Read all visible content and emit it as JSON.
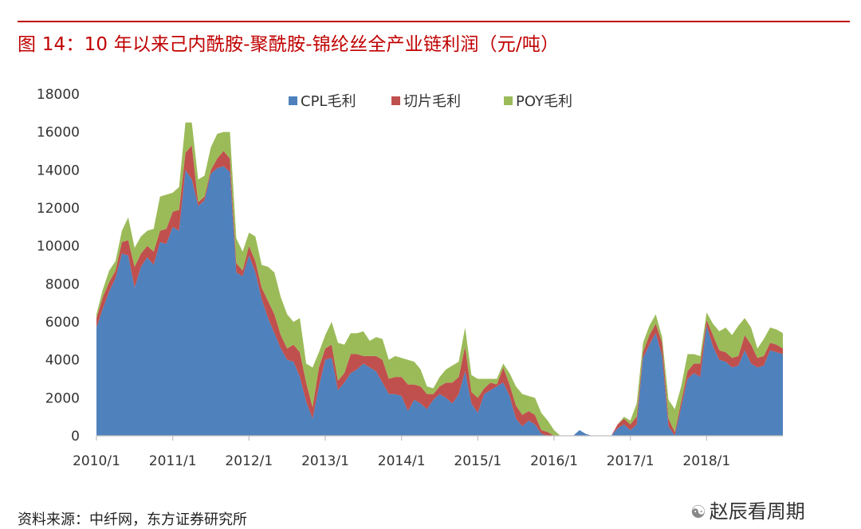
{
  "header": {
    "title": "图 14：10 年以来己内酰胺-聚酰胺-锦纶丝全产业链利润（元/吨）"
  },
  "footer": {
    "source": "资料来源：中纤网，东方证券研究所",
    "watermark": "赵辰看周期",
    "watermark_icon": "wechat-icon"
  },
  "chart_data": {
    "type": "area",
    "stacked": true,
    "title": "图 14：10 年以来己内酰胺-聚酰胺-锦纶丝全产业链利润（元/吨）",
    "ylim": [
      0,
      18000
    ],
    "yticks": [
      0,
      2000,
      4000,
      6000,
      8000,
      10000,
      12000,
      14000,
      16000,
      18000
    ],
    "ytick_labels": [
      "0",
      "2000",
      "4000",
      "6000",
      "8000",
      "10000",
      "12000",
      "14000",
      "16000",
      "18000"
    ],
    "xticks": [
      "2010/1",
      "2011/1",
      "2012/1",
      "2013/1",
      "2014/1",
      "2015/1",
      "2016/1",
      "2017/1",
      "2018/1"
    ],
    "x_start": "2010/1",
    "x_end": "2018/9",
    "grid": false,
    "legend": {
      "placement": "top-center"
    },
    "colors": {
      "CPL毛利": "#4f81bd",
      "切片毛利": "#c0504d",
      "POY毛利": "#9bbb59"
    },
    "series": [
      {
        "name": "CPL毛利",
        "values": [
          5700,
          6700,
          7600,
          8300,
          9600,
          9500,
          7800,
          8900,
          9400,
          9000,
          10200,
          10100,
          11000,
          10800,
          14000,
          13500,
          12100,
          12400,
          13800,
          14100,
          14200,
          13900,
          8600,
          8400,
          9500,
          8600,
          7200,
          6200,
          5400,
          4600,
          4000,
          3900,
          3100,
          1800,
          900,
          2600,
          4000,
          4100,
          2400,
          2800,
          3300,
          3500,
          3800,
          3600,
          3400,
          2800,
          2200,
          2200,
          2100,
          1300,
          1900,
          1700,
          1400,
          1900,
          2200,
          2000,
          1700,
          2200,
          3400,
          1700,
          1200,
          2200,
          2400,
          2600,
          2800,
          2100,
          900,
          500,
          800,
          600,
          100,
          0,
          0,
          0,
          0,
          0,
          300,
          100,
          0,
          0,
          0,
          0,
          400,
          600,
          300,
          600,
          4100,
          4800,
          5400,
          4200,
          500,
          0,
          1500,
          3000,
          3300,
          3100,
          5800,
          4700,
          4000,
          3900,
          3600,
          3700,
          4500,
          3800,
          3600,
          3700,
          4500,
          4400,
          4300
        ]
      },
      {
        "name": "切片毛利",
        "values": [
          500,
          600,
          500,
          400,
          600,
          800,
          1100,
          700,
          600,
          700,
          600,
          800,
          800,
          1100,
          900,
          1800,
          200,
          200,
          200,
          500,
          800,
          700,
          500,
          300,
          500,
          600,
          600,
          900,
          1000,
          700,
          600,
          900,
          1300,
          1000,
          600,
          1000,
          600,
          700,
          500,
          500,
          1000,
          800,
          400,
          600,
          800,
          1200,
          800,
          900,
          1000,
          1400,
          800,
          900,
          800,
          300,
          400,
          800,
          1100,
          900,
          1300,
          600,
          800,
          300,
          400,
          100,
          800,
          600,
          700,
          600,
          500,
          500,
          200,
          200,
          0,
          0,
          0,
          0,
          0,
          0,
          0,
          0,
          0,
          0,
          200,
          300,
          300,
          400,
          300,
          500,
          500,
          700,
          400,
          200,
          300,
          400,
          500,
          700,
          300,
          600,
          500,
          500,
          500,
          500,
          800,
          1000,
          500,
          500,
          400,
          400,
          300
        ]
      },
      {
        "name": "POY毛利",
        "values": [
          200,
          400,
          600,
          500,
          600,
          1200,
          1000,
          900,
          800,
          1200,
          1800,
          1800,
          1000,
          1200,
          1600,
          1200,
          1200,
          1100,
          1200,
          1300,
          1000,
          1400,
          1300,
          1000,
          700,
          1300,
          1200,
          1800,
          2200,
          2000,
          1800,
          1200,
          1800,
          1000,
          2100,
          800,
          700,
          1200,
          2000,
          1500,
          1100,
          1100,
          1300,
          800,
          1000,
          1100,
          1000,
          1100,
          1000,
          1300,
          1200,
          900,
          400,
          300,
          500,
          700,
          900,
          800,
          1000,
          900,
          1000,
          500,
          200,
          300,
          200,
          600,
          1000,
          1100,
          800,
          900,
          900,
          600,
          300,
          0,
          0,
          0,
          0,
          0,
          0,
          0,
          0,
          0,
          0,
          100,
          200,
          700,
          500,
          500,
          500,
          300,
          1000,
          1200,
          800,
          900,
          500,
          400,
          400,
          600,
          1000,
          1300,
          1200,
          1600,
          900,
          900,
          500,
          900,
          800,
          800,
          800
        ]
      }
    ]
  }
}
